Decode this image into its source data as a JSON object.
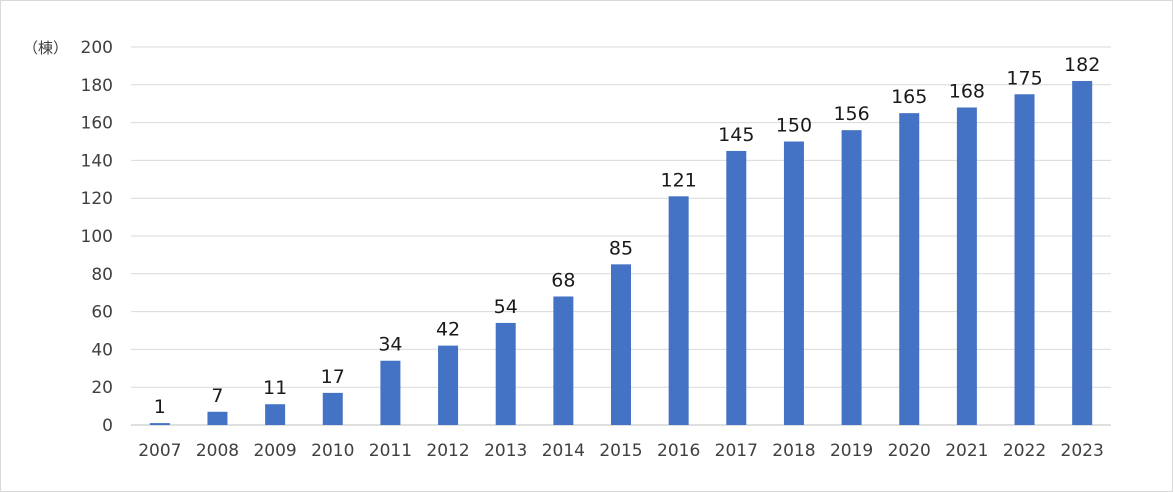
{
  "chart_data": {
    "type": "bar",
    "title": "",
    "xlabel": "",
    "ylabel": "（棟）",
    "categories": [
      "2007",
      "2008",
      "2009",
      "2010",
      "2011",
      "2012",
      "2013",
      "2014",
      "2015",
      "2016",
      "2017",
      "2018",
      "2019",
      "2020",
      "2021",
      "2022",
      "2023"
    ],
    "values": [
      1,
      7,
      11,
      17,
      34,
      42,
      54,
      68,
      85,
      121,
      145,
      150,
      156,
      165,
      168,
      175,
      182
    ],
    "ylim": [
      0,
      200
    ],
    "yticks": [
      0,
      20,
      40,
      60,
      80,
      100,
      120,
      140,
      160,
      180,
      200
    ],
    "grid": true,
    "legend": "none",
    "data_labels": true,
    "colors": {
      "bar": "#4472C4",
      "grid": "#d9d9d9",
      "axis": "#bfbfbf"
    }
  }
}
